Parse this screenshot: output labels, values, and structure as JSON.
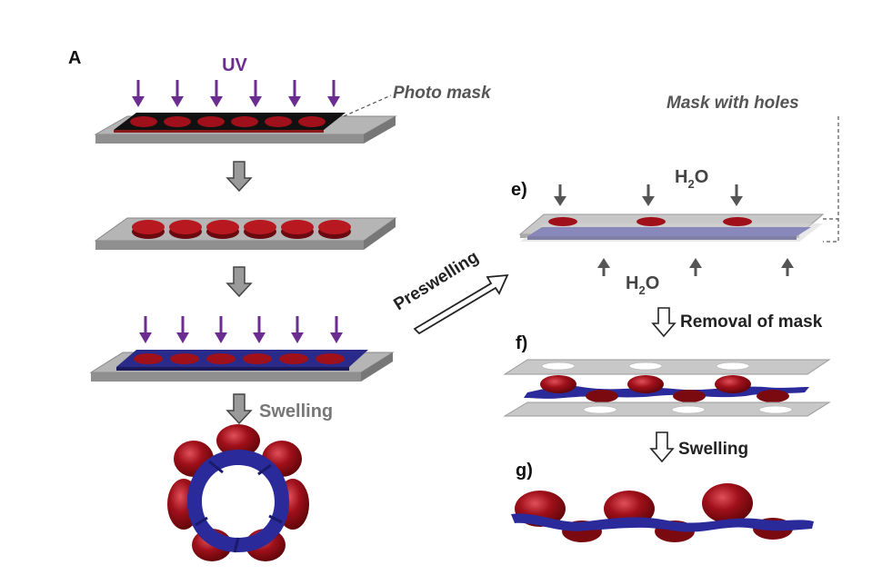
{
  "panel_label": "A",
  "labels": {
    "uv": "UV",
    "photo_mask": "Photo mask",
    "mask_with_holes": "Mask with holes",
    "step_e": "e)",
    "step_f": "f)",
    "step_g": "g)",
    "h2o_top": "H2O",
    "h2o_bottom": "H2O",
    "water_base": "H",
    "water_sub": "2",
    "water_tail": "O",
    "preswelling": "Preswelling",
    "removal_of_mask": "Removal of mask",
    "swelling_left": "Swelling",
    "swelling_right": "Swelling"
  },
  "colors": {
    "uv_arrow": "#6b2d8f",
    "substrate_gray": "#a6a6a6",
    "substrate_edge": "#8a8a8a",
    "mask_black": "#111111",
    "disk_red": "#a0101a",
    "disk_dark": "#6a0a10",
    "layer_blue": "#2a2a8a",
    "text_gray": "#555555"
  }
}
